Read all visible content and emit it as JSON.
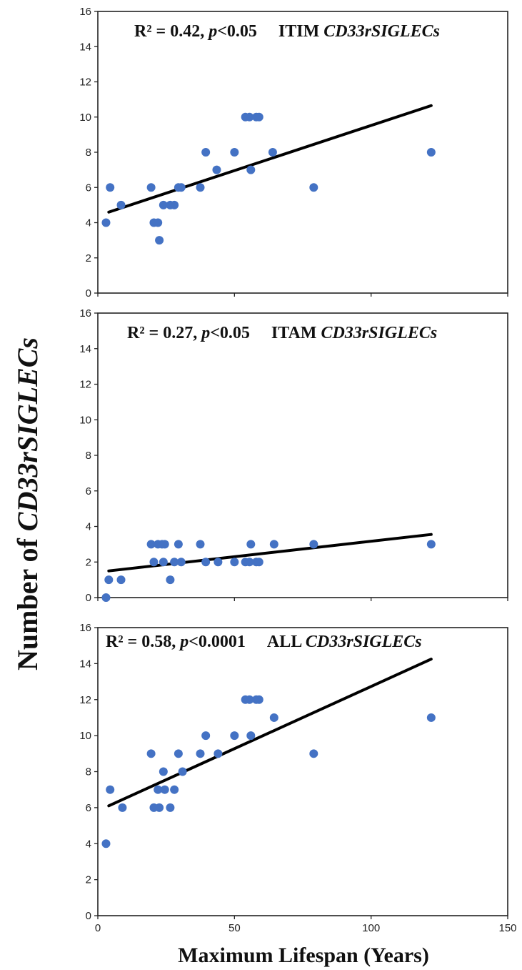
{
  "xlabel": "Maximum Lifespan (Years)",
  "ylabel_prefix": "Number of ",
  "ylabel_italic": "CD33rSIGLECs",
  "chart_data": [
    {
      "type": "scatter",
      "annotation": {
        "r2": "R² = 0.42, ",
        "p_letter": "p",
        "p_value": "<0.05",
        "group": "ITIM ",
        "gene": "CD33rSIGLECs"
      },
      "xlim": [
        0,
        150
      ],
      "ylim": [
        0,
        16
      ],
      "xticks": [
        0,
        50,
        100,
        150
      ],
      "yticks": [
        0,
        2,
        4,
        6,
        8,
        10,
        12,
        14,
        16
      ],
      "trendline": {
        "x": [
          4,
          122
        ],
        "y": [
          4.6,
          10.65
        ]
      },
      "points": [
        {
          "x": 3,
          "y": 4
        },
        {
          "x": 4.5,
          "y": 6
        },
        {
          "x": 8.5,
          "y": 5
        },
        {
          "x": 19.5,
          "y": 6
        },
        {
          "x": 20.5,
          "y": 4
        },
        {
          "x": 22,
          "y": 4
        },
        {
          "x": 22.5,
          "y": 3
        },
        {
          "x": 24,
          "y": 5
        },
        {
          "x": 26.5,
          "y": 5
        },
        {
          "x": 28,
          "y": 5
        },
        {
          "x": 29.5,
          "y": 6
        },
        {
          "x": 30.5,
          "y": 6
        },
        {
          "x": 37.5,
          "y": 6
        },
        {
          "x": 39.5,
          "y": 8
        },
        {
          "x": 43.5,
          "y": 7
        },
        {
          "x": 50,
          "y": 8
        },
        {
          "x": 54,
          "y": 10
        },
        {
          "x": 55.5,
          "y": 10
        },
        {
          "x": 56,
          "y": 7
        },
        {
          "x": 58,
          "y": 10
        },
        {
          "x": 59,
          "y": 10
        },
        {
          "x": 64,
          "y": 8
        },
        {
          "x": 79,
          "y": 6
        },
        {
          "x": 122,
          "y": 8
        }
      ]
    },
    {
      "type": "scatter",
      "annotation": {
        "r2": "R² = 0.27, ",
        "p_letter": "p",
        "p_value": "<0.05",
        "group": "ITAM ",
        "gene": "CD33rSIGLECs"
      },
      "xlim": [
        0,
        150
      ],
      "ylim": [
        0,
        16
      ],
      "xticks": [
        0,
        50,
        100,
        150
      ],
      "yticks": [
        0,
        2,
        4,
        6,
        8,
        10,
        12,
        14,
        16
      ],
      "trendline": {
        "x": [
          4,
          122
        ],
        "y": [
          1.5,
          3.55
        ]
      },
      "points": [
        {
          "x": 3,
          "y": 0
        },
        {
          "x": 4,
          "y": 1
        },
        {
          "x": 8.5,
          "y": 1
        },
        {
          "x": 19.5,
          "y": 3
        },
        {
          "x": 20.5,
          "y": 2
        },
        {
          "x": 22,
          "y": 3
        },
        {
          "x": 23.5,
          "y": 3
        },
        {
          "x": 24,
          "y": 2
        },
        {
          "x": 24.5,
          "y": 3
        },
        {
          "x": 26.5,
          "y": 1
        },
        {
          "x": 28,
          "y": 2
        },
        {
          "x": 29.5,
          "y": 3
        },
        {
          "x": 30.5,
          "y": 2
        },
        {
          "x": 37.5,
          "y": 3
        },
        {
          "x": 39.5,
          "y": 2
        },
        {
          "x": 44,
          "y": 2
        },
        {
          "x": 50,
          "y": 2
        },
        {
          "x": 54,
          "y": 2
        },
        {
          "x": 55.5,
          "y": 2
        },
        {
          "x": 56,
          "y": 3
        },
        {
          "x": 58,
          "y": 2
        },
        {
          "x": 59,
          "y": 2
        },
        {
          "x": 64.5,
          "y": 3
        },
        {
          "x": 79,
          "y": 3
        },
        {
          "x": 122,
          "y": 3
        }
      ]
    },
    {
      "type": "scatter",
      "annotation": {
        "r2": "R² = 0.58, ",
        "p_letter": "p",
        "p_value": "<0.0001",
        "group": "ALL ",
        "gene": "CD33rSIGLECs"
      },
      "xlim": [
        0,
        150
      ],
      "ylim": [
        0,
        16
      ],
      "xticks": [
        0,
        50,
        100,
        150
      ],
      "yticks": [
        0,
        2,
        4,
        6,
        8,
        10,
        12,
        14,
        16
      ],
      "trendline": {
        "x": [
          4,
          122
        ],
        "y": [
          6.1,
          14.25
        ]
      },
      "points": [
        {
          "x": 3,
          "y": 4
        },
        {
          "x": 4.5,
          "y": 7
        },
        {
          "x": 9,
          "y": 6
        },
        {
          "x": 19.5,
          "y": 9
        },
        {
          "x": 20.5,
          "y": 6
        },
        {
          "x": 22,
          "y": 7
        },
        {
          "x": 22.5,
          "y": 6
        },
        {
          "x": 24,
          "y": 8
        },
        {
          "x": 24.5,
          "y": 7
        },
        {
          "x": 26.5,
          "y": 6
        },
        {
          "x": 28,
          "y": 7
        },
        {
          "x": 29.5,
          "y": 9
        },
        {
          "x": 31,
          "y": 8
        },
        {
          "x": 37.5,
          "y": 9
        },
        {
          "x": 39.5,
          "y": 10
        },
        {
          "x": 44,
          "y": 9
        },
        {
          "x": 50,
          "y": 10
        },
        {
          "x": 54,
          "y": 12
        },
        {
          "x": 55.5,
          "y": 12
        },
        {
          "x": 56,
          "y": 10
        },
        {
          "x": 58,
          "y": 12
        },
        {
          "x": 59,
          "y": 12
        },
        {
          "x": 64.5,
          "y": 11
        },
        {
          "x": 79,
          "y": 9
        },
        {
          "x": 122,
          "y": 11
        }
      ]
    }
  ]
}
